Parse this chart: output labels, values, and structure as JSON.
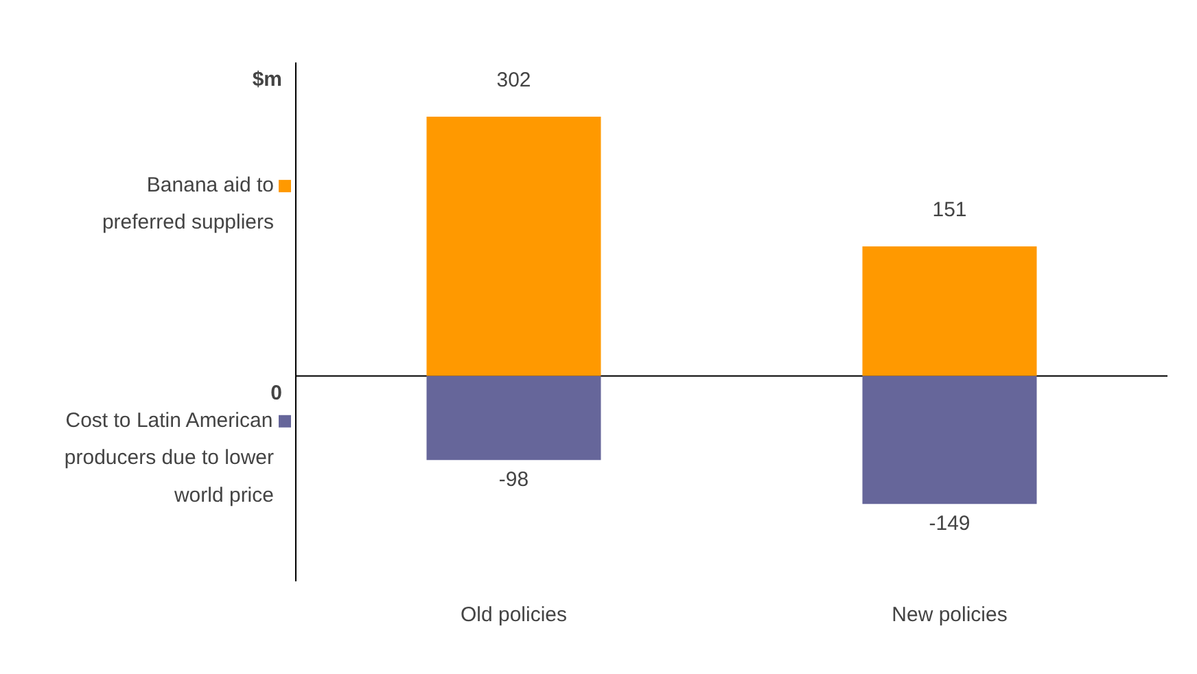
{
  "chart_data": {
    "type": "bar",
    "ylabel": "$m",
    "categories": [
      "Old policies",
      "New policies"
    ],
    "series": [
      {
        "name": "Banana aid to preferred suppliers",
        "color": "#ff9900",
        "values": [
          302,
          151
        ]
      },
      {
        "name": "Cost to Latin American producers due to lower world price",
        "color": "#66669a",
        "values": [
          -98,
          -149
        ]
      }
    ],
    "annotations": [
      "0"
    ],
    "stacked": true,
    "legend": "left",
    "data_labels": true,
    "grid": false
  }
}
